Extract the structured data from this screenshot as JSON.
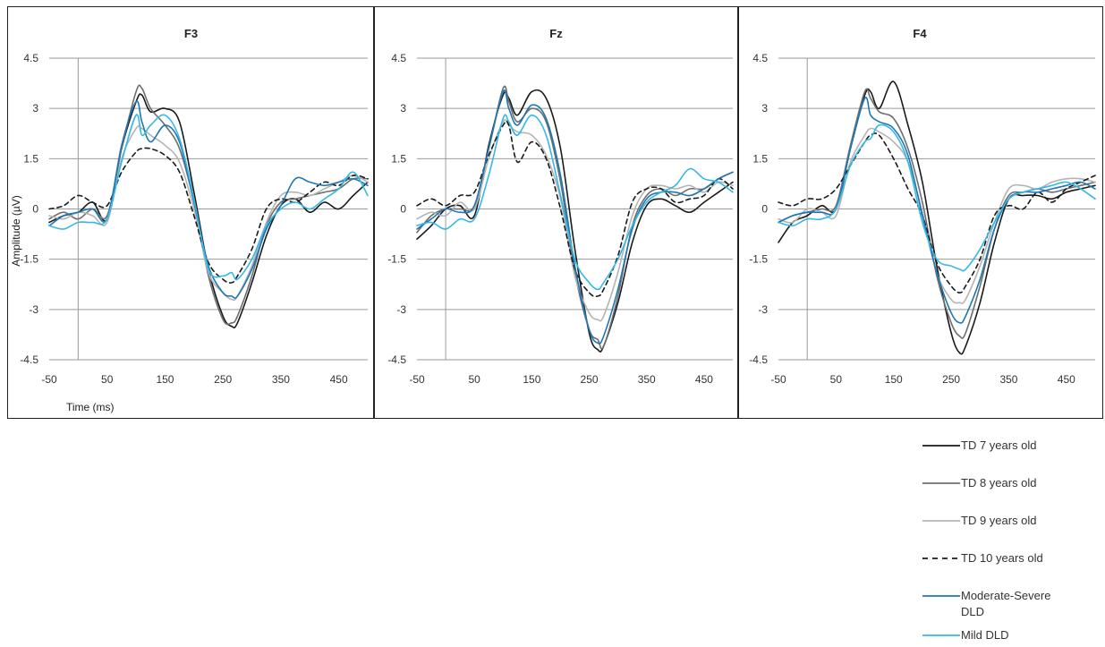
{
  "chart_data": {
    "type": "line",
    "ylabel": "Amplitude (µV)",
    "xlabel": "Time (ms)",
    "xlim": [
      -50,
      500
    ],
    "ylim": [
      -4.5,
      4.5
    ],
    "xticks": [
      "-50",
      "50",
      "150",
      "250",
      "350",
      "450"
    ],
    "yticks": [
      "4.5",
      "3",
      "1.5",
      "0",
      "-1.5",
      "-3",
      "-4.5"
    ],
    "grid": "horizontal",
    "legend_position": "bottom-right",
    "legend": [
      {
        "name": "TD 7 years old",
        "color": "#1a1a1a",
        "dash": "solid"
      },
      {
        "name": "TD 8 years old",
        "color": "#6e6e6e",
        "dash": "solid"
      },
      {
        "name": "TD 9 years old",
        "color": "#b4b4b4",
        "dash": "solid"
      },
      {
        "name": "TD 10 years old",
        "color": "#1a1a1a",
        "dash": "dashed"
      },
      {
        "name": "Moderate-Severe DLD",
        "color": "#1f77b4",
        "dash": "solid"
      },
      {
        "name": "Mild DLD",
        "color": "#35b8e6",
        "dash": "solid"
      }
    ],
    "x": [
      -50,
      -25,
      0,
      25,
      50,
      75,
      100,
      110,
      125,
      150,
      175,
      200,
      225,
      250,
      265,
      275,
      300,
      325,
      350,
      375,
      400,
      425,
      450,
      475,
      500
    ],
    "panels": [
      {
        "title": "F3",
        "series": [
          {
            "name": "TD 7 years old",
            "values": [
              -0.4,
              -0.2,
              -0.1,
              0.2,
              -0.3,
              1.8,
              3.2,
              3.4,
              2.9,
              3.0,
              2.6,
              0.5,
              -1.8,
              -3.2,
              -3.5,
              -3.4,
              -2.2,
              -0.8,
              0.1,
              0.3,
              -0.1,
              0.2,
              0.0,
              0.4,
              0.8
            ]
          },
          {
            "name": "TD 8 years old",
            "values": [
              -0.3,
              -0.1,
              -0.3,
              0.0,
              -0.2,
              1.8,
              3.5,
              3.6,
              3.0,
              2.5,
              1.8,
              0.2,
              -2.0,
              -3.3,
              -3.4,
              -3.2,
              -2.0,
              -0.5,
              0.2,
              0.3,
              0.4,
              0.5,
              0.6,
              0.9,
              0.9
            ]
          },
          {
            "name": "TD 9 years old",
            "values": [
              -0.2,
              -0.3,
              -0.1,
              -0.2,
              -0.4,
              1.5,
              2.4,
              2.4,
              2.2,
              1.9,
              1.4,
              0.0,
              -1.9,
              -2.5,
              -2.7,
              -2.6,
              -1.7,
              -0.4,
              0.4,
              0.5,
              0.4,
              0.6,
              0.8,
              1.0,
              0.8
            ]
          },
          {
            "name": "TD 10 years old",
            "values": [
              0.0,
              0.1,
              0.4,
              0.2,
              0.1,
              1.1,
              1.7,
              1.8,
              1.8,
              1.6,
              1.1,
              -0.2,
              -1.6,
              -2.1,
              -2.2,
              -2.0,
              -1.2,
              0.0,
              0.3,
              0.2,
              0.5,
              0.8,
              0.7,
              1.0,
              0.9
            ]
          },
          {
            "name": "Moderate-Severe DLD",
            "values": [
              -0.5,
              -0.2,
              -0.1,
              0.0,
              -0.3,
              1.9,
              3.2,
              2.6,
              2.0,
              2.5,
              2.0,
              0.2,
              -1.7,
              -2.5,
              -2.6,
              -2.6,
              -1.8,
              -0.6,
              0.1,
              0.9,
              0.8,
              0.7,
              0.8,
              0.9,
              0.7
            ]
          },
          {
            "name": "Mild DLD",
            "values": [
              -0.5,
              -0.6,
              -0.4,
              -0.4,
              -0.3,
              1.4,
              2.8,
              2.2,
              2.5,
              2.8,
              2.1,
              0.3,
              -1.8,
              -2.0,
              -1.9,
              -2.1,
              -1.5,
              -0.5,
              0.0,
              0.2,
              0.0,
              0.3,
              0.6,
              1.1,
              0.4
            ]
          }
        ]
      },
      {
        "title": "Fz",
        "series": [
          {
            "name": "TD 7 years old",
            "values": [
              -0.9,
              -0.5,
              0.0,
              0.1,
              -0.2,
              1.9,
              3.4,
              3.3,
              2.8,
              3.5,
              3.3,
              1.8,
              -1.2,
              -3.7,
              -4.2,
              -4.1,
              -2.8,
              -1.0,
              0.1,
              0.3,
              0.1,
              -0.1,
              0.2,
              0.5,
              0.8
            ]
          },
          {
            "name": "TD 8 years old",
            "values": [
              -0.7,
              -0.2,
              0.0,
              0.0,
              0.1,
              1.8,
              3.6,
              3.2,
              2.6,
              3.0,
              2.6,
              0.8,
              -1.9,
              -3.6,
              -3.9,
              -4.1,
              -2.6,
              -0.5,
              0.4,
              0.6,
              0.4,
              0.6,
              0.6,
              0.9,
              1.1
            ]
          },
          {
            "name": "TD 9 years old",
            "values": [
              -0.3,
              -0.1,
              -0.2,
              0.2,
              0.0,
              1.5,
              2.6,
              2.5,
              2.3,
              2.2,
              1.6,
              0.3,
              -2.0,
              -3.1,
              -3.3,
              -3.2,
              -1.9,
              -0.2,
              0.6,
              0.7,
              0.6,
              0.7,
              0.5,
              0.8,
              0.7
            ]
          },
          {
            "name": "TD 10 years old",
            "values": [
              0.1,
              0.3,
              0.1,
              0.4,
              0.5,
              1.6,
              2.5,
              2.5,
              1.4,
              2.0,
              1.5,
              0.0,
              -1.8,
              -2.5,
              -2.6,
              -2.4,
              -1.4,
              0.2,
              0.6,
              0.6,
              0.2,
              0.3,
              0.4,
              0.9,
              0.6
            ]
          },
          {
            "name": "Moderate-Severe DLD",
            "values": [
              -0.6,
              -0.3,
              0.0,
              -0.1,
              0.1,
              1.8,
              3.5,
              3.0,
              2.5,
              3.1,
              2.7,
              1.0,
              -1.7,
              -3.6,
              -4.0,
              -3.8,
              -2.4,
              -0.6,
              0.3,
              0.5,
              0.5,
              0.4,
              0.6,
              0.9,
              1.1
            ]
          },
          {
            "name": "Mild DLD",
            "values": [
              -0.5,
              -0.4,
              -0.6,
              -0.3,
              -0.3,
              1.0,
              2.7,
              2.6,
              2.2,
              2.8,
              2.2,
              0.4,
              -1.5,
              -2.2,
              -2.4,
              -2.2,
              -1.5,
              -0.5,
              0.2,
              0.5,
              0.7,
              1.2,
              0.9,
              0.8,
              0.5
            ]
          }
        ]
      },
      {
        "title": "F4",
        "series": [
          {
            "name": "TD 7 years old",
            "values": [
              -1.0,
              -0.4,
              -0.2,
              0.1,
              0.0,
              1.8,
              3.4,
              3.5,
              3.0,
              3.8,
              2.5,
              0.8,
              -1.7,
              -3.7,
              -4.3,
              -4.1,
              -2.8,
              -1.0,
              0.3,
              0.4,
              0.4,
              0.3,
              0.5,
              0.6,
              0.7
            ]
          },
          {
            "name": "TD 8 years old",
            "values": [
              -0.4,
              -0.2,
              -0.1,
              0.0,
              0.1,
              1.9,
              3.5,
              3.3,
              2.9,
              2.7,
              1.8,
              0.2,
              -2.0,
              -3.4,
              -3.8,
              -3.7,
              -2.3,
              -0.6,
              0.4,
              0.5,
              0.6,
              0.5,
              0.6,
              0.7,
              0.8
            ]
          },
          {
            "name": "TD 9 years old",
            "values": [
              -0.3,
              -0.4,
              0.0,
              -0.1,
              -0.2,
              1.4,
              2.2,
              2.4,
              2.3,
              2.0,
              1.4,
              -0.1,
              -1.9,
              -2.7,
              -2.8,
              -2.7,
              -1.7,
              -0.4,
              0.6,
              0.7,
              0.6,
              0.8,
              0.9,
              0.9,
              0.8
            ]
          },
          {
            "name": "TD 10 years old",
            "values": [
              0.2,
              0.1,
              0.3,
              0.3,
              0.6,
              1.3,
              2.0,
              2.2,
              2.2,
              1.5,
              0.6,
              -0.2,
              -1.6,
              -2.3,
              -2.5,
              -2.3,
              -1.5,
              -0.2,
              0.1,
              0.0,
              0.5,
              0.2,
              0.6,
              0.8,
              1.0
            ]
          },
          {
            "name": "Moderate-Severe DLD",
            "values": [
              -0.4,
              -0.2,
              -0.1,
              -0.1,
              0.0,
              1.8,
              3.3,
              2.8,
              2.6,
              2.4,
              1.6,
              -0.2,
              -1.9,
              -3.1,
              -3.4,
              -3.2,
              -2.1,
              -0.6,
              0.3,
              0.5,
              0.5,
              0.6,
              0.7,
              0.8,
              0.6
            ]
          },
          {
            "name": "Mild DLD",
            "values": [
              -0.4,
              -0.5,
              -0.3,
              -0.3,
              0.0,
              1.3,
              2.0,
              2.1,
              2.5,
              2.3,
              1.4,
              -0.4,
              -1.5,
              -1.7,
              -1.8,
              -1.8,
              -1.2,
              -0.4,
              0.3,
              0.5,
              0.6,
              0.7,
              0.8,
              0.6,
              0.3
            ]
          }
        ]
      }
    ]
  }
}
